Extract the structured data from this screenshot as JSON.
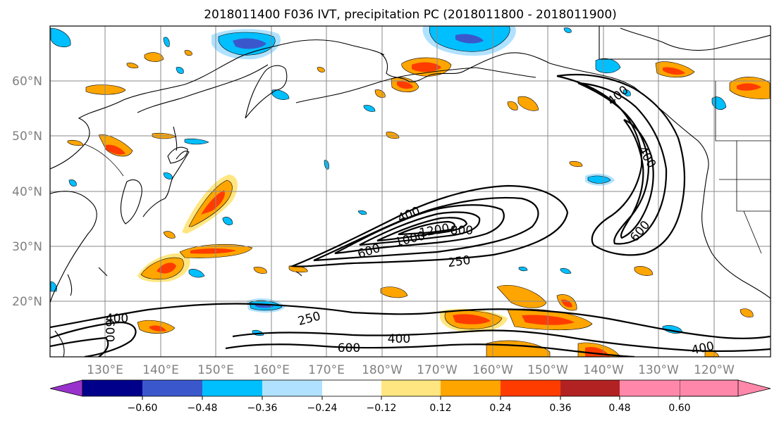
{
  "title": "2018011400 F036 IVT, precipitation PC (2018011800 - 2018011900)",
  "lat_labels": [
    "60°N",
    "50°N",
    "40°N",
    "30°N",
    "20°N"
  ],
  "lon_labels": [
    "130°E",
    "140°E",
    "150°E",
    "160°E",
    "170°E",
    "180°W",
    "170°W",
    "160°W",
    "150°W",
    "140°W",
    "130°W",
    "120°W"
  ],
  "contour_labels": [
    "400",
    "1000",
    "1200",
    "800",
    "600",
    "250",
    "400",
    "600",
    "400",
    "250",
    "400",
    "600",
    "400",
    "600"
  ],
  "colorbar": {
    "ticks": [
      "−0.60",
      "−0.48",
      "−0.36",
      "−0.24",
      "−0.12",
      "0.12",
      "0.24",
      "0.36",
      "0.48",
      "0.60"
    ],
    "colors": [
      "#9932cc",
      "#00008b",
      "#3a58cc",
      "#00bfff",
      "#b0e2ff",
      "#ffffff",
      "#ffe680",
      "#ffa500",
      "#ff3c00",
      "#b22222",
      "#ff88aa"
    ]
  }
}
